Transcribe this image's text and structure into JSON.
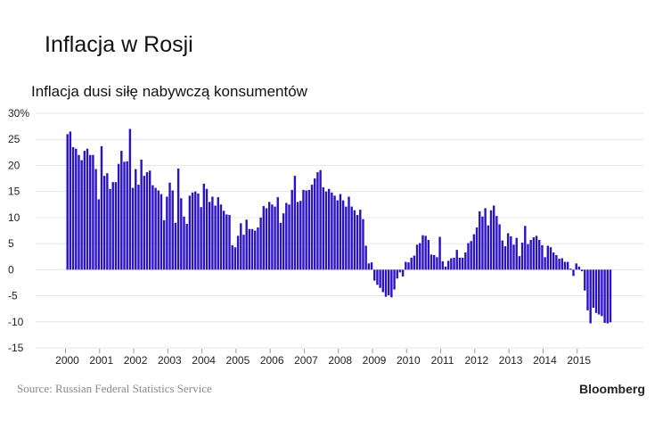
{
  "title": "Inflacja w Rosji",
  "subtitle": "Inflacja dusi siłę nabywczą konsumentów",
  "source": "Source: Russian Federal Statistics Service",
  "brand": "Bloomberg",
  "chart_data": {
    "type": "bar",
    "title": "Inflacja dusi siłę nabywczą konsumentów",
    "frequency": "monthly",
    "start": "2000-01",
    "ylim": [
      -15,
      30
    ],
    "yticks": [
      "30%",
      "25",
      "20",
      "15",
      "10",
      "5",
      "0",
      "-5",
      "-10",
      "-15"
    ],
    "xticks": [
      "2000",
      "2001",
      "2002",
      "2003",
      "2004",
      "2005",
      "2006",
      "2007",
      "2008",
      "2009",
      "2010",
      "2011",
      "2012",
      "2013",
      "2014",
      "2015"
    ],
    "grid": true,
    "bar_color": "#2b12c4",
    "values": [
      26,
      26.5,
      23.5,
      23.2,
      22,
      21,
      22.8,
      23.2,
      22,
      22,
      19.3,
      13.5,
      23.7,
      18,
      18.5,
      15.5,
      16.8,
      16.8,
      20.3,
      22.8,
      20.7,
      20.8,
      27,
      15.7,
      19.3,
      16.3,
      21.1,
      18,
      18.7,
      19,
      16.2,
      15.7,
      15.2,
      14.5,
      9.5,
      14,
      16.7,
      15.2,
      9,
      19.4,
      13.7,
      10.2,
      8.8,
      14.2,
      14.8,
      15,
      14.6,
      12,
      16.5,
      15.5,
      13,
      14,
      12.3,
      13.9,
      12.5,
      11.3,
      10.6,
      10.5,
      4.7,
      4.3,
      6.5,
      8.9,
      6.7,
      9.6,
      7.8,
      7.8,
      7.5,
      8.1,
      10,
      12.2,
      11.8,
      13,
      12.5,
      12.1,
      13.9,
      9,
      10.8,
      12.8,
      12.5,
      15.3,
      18,
      13,
      13.2,
      15.3,
      15.2,
      15.3,
      16.3,
      17.5,
      18.7,
      19.1,
      15.8,
      15,
      15.5,
      14.8,
      14.2,
      13.3,
      14.5,
      13.3,
      12.1,
      14,
      12.1,
      11.4,
      10.5,
      11.5,
      9.7,
      4.6,
      1.2,
      1.4,
      -2.1,
      -2.9,
      -3.5,
      -4.3,
      -5.2,
      -4.9,
      -5.3,
      -3.8,
      -1.7,
      -0.5,
      -1.3,
      1.5,
      1.4,
      2.3,
      2.7,
      4.8,
      5.1,
      6.6,
      6.5,
      5.7,
      2.9,
      2.8,
      2.4,
      6.3,
      1.6,
      0.6,
      1.7,
      2.2,
      2.3,
      3.8,
      2.3,
      2.3,
      3.3,
      5.1,
      5.5,
      6.8,
      8.1,
      11.2,
      10.2,
      11.8,
      8.5,
      11.4,
      12.3,
      10.3,
      8.7,
      5.6,
      4.5,
      7,
      6.4,
      4.8,
      6.1,
      2.6,
      5.2,
      8.4,
      4.9,
      5.7,
      6.2,
      6.5,
      5.7,
      4.7,
      2.4,
      4.6,
      4.3,
      3.3,
      2.8,
      2.1,
      2.2,
      1.5,
      1.5,
      0.2,
      -1.2,
      1.2,
      0.6,
      -0.3,
      -4,
      -7.8,
      -10.3,
      -7.3,
      -8.3,
      -8.6,
      -8.9,
      -10.2,
      -10.3,
      -10.1
    ]
  }
}
